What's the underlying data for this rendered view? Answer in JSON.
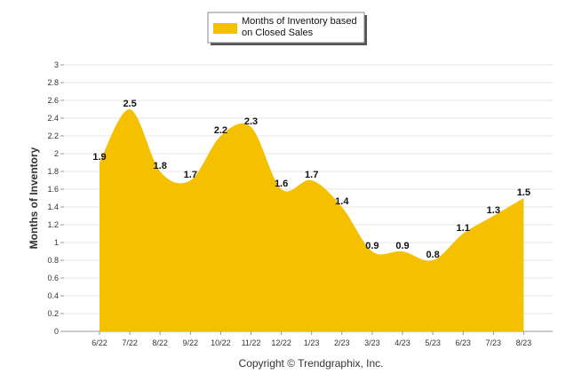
{
  "chart_data": {
    "type": "area",
    "categories": [
      "6/22",
      "7/22",
      "8/22",
      "9/22",
      "10/22",
      "11/22",
      "12/22",
      "1/23",
      "2/23",
      "3/23",
      "4/23",
      "5/23",
      "6/23",
      "7/23",
      "8/23"
    ],
    "series": [
      {
        "name": "Months of Inventory based on Closed Sales",
        "values": [
          1.9,
          2.5,
          1.8,
          1.7,
          2.2,
          2.3,
          1.6,
          1.7,
          1.4,
          0.9,
          0.9,
          0.8,
          1.1,
          1.3,
          1.5
        ],
        "labels": [
          "1.9",
          "2.5",
          "1.8",
          "1.7",
          "2.2",
          "2.3",
          "1.6",
          "1.7",
          "1.4",
          "0.9",
          "0.9",
          "0.8",
          "1.1",
          "1.3",
          "1.5"
        ],
        "color": "#f5c000"
      }
    ],
    "ylabel": "Months of Inventory",
    "xlabel": "",
    "ylim": [
      0,
      3
    ],
    "yticks": [
      "0",
      "0.2",
      "0.4",
      "0.6",
      "0.8",
      "1",
      "1.2",
      "1.4",
      "1.6",
      "1.8",
      "2",
      "2.2",
      "2.4",
      "2.6",
      "2.8",
      "3"
    ],
    "grid": true,
    "legend": {
      "position": "top-center",
      "lines": [
        "Months of Inventory based",
        "on Closed Sales"
      ]
    },
    "gridColor": "#e6e6e6"
  },
  "footer": {
    "copyright": "Copyright © Trendgraphix, Inc."
  }
}
